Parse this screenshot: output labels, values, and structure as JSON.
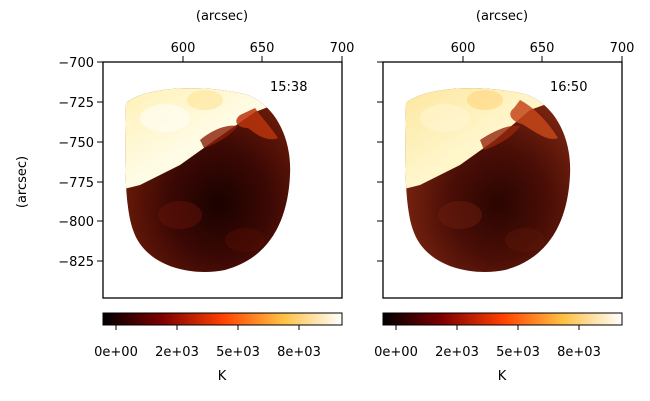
{
  "chart_data": [
    {
      "type": "heatmap",
      "title": "",
      "xlabel": "(arcsec)",
      "ylabel": "(arcsec)",
      "xlim": [
        560,
        700
      ],
      "ylim": [
        -848,
        -700
      ],
      "xticks": [
        "600",
        "650",
        "700"
      ],
      "yticks": [
        "−700",
        "−725",
        "−750",
        "−775",
        "−800",
        "−825"
      ],
      "annotation": "15:38",
      "colorbar": {
        "label": "K",
        "ticks": [
          "0e+00",
          "2e+03",
          "5e+03",
          "8e+03"
        ],
        "colormap": "afmhot"
      },
      "regions": [
        {
          "name": "bright-upper-left",
          "value_K": 9000,
          "color": "#fffbd9"
        },
        {
          "name": "dark-lower",
          "value_K": 500,
          "color": "#3b0804"
        }
      ]
    },
    {
      "type": "heatmap",
      "title": "",
      "xlabel": "(arcsec)",
      "ylabel": "",
      "xlim": [
        560,
        700
      ],
      "ylim": [
        -848,
        -700
      ],
      "xticks": [
        "600",
        "650",
        "700"
      ],
      "yticks": [],
      "annotation": "16:50",
      "colorbar": {
        "label": "K",
        "ticks": [
          "0e+00",
          "2e+03",
          "5e+03",
          "8e+03"
        ],
        "colormap": "afmhot"
      },
      "regions": [
        {
          "name": "bright-upper-left",
          "value_K": 8500,
          "color": "#fff3b5"
        },
        {
          "name": "dark-lower",
          "value_K": 800,
          "color": "#4a0e06"
        }
      ]
    }
  ]
}
